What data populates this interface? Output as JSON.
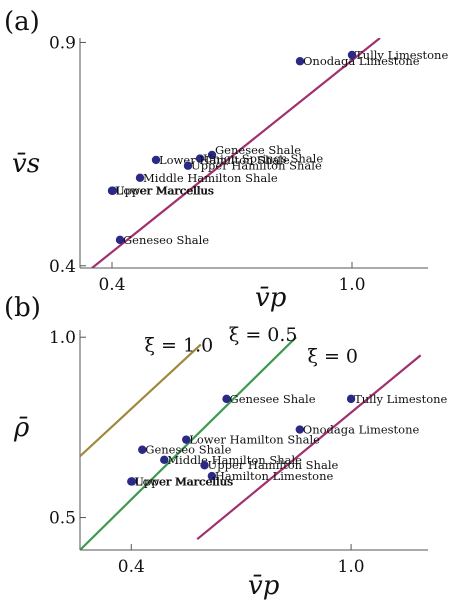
{
  "chart_data": [
    {
      "panel_label": "(a)",
      "type": "scatter",
      "xlabel": "v̄p",
      "ylabel": "v̄s",
      "x_ticks": [
        {
          "value": 0.4,
          "label": "0.4"
        },
        {
          "value": 1.0,
          "label": "1.0"
        }
      ],
      "y_ticks": [
        {
          "value": 0.4,
          "label": "0.4"
        },
        {
          "value": 0.9,
          "label": "0.9"
        }
      ],
      "xlim": [
        0.32,
        1.19
      ],
      "ylim": [
        0.395,
        0.91
      ],
      "grid": false,
      "marker_color": "#2a2a86",
      "line_color": "#a0306e",
      "points": [
        {
          "name": "Tully Limestone",
          "x": 1.0,
          "y": 0.872
        },
        {
          "name": "Onodaga Limestone",
          "x": 0.87,
          "y": 0.858
        },
        {
          "name": "Genesee Shale",
          "x": 0.65,
          "y": 0.648
        },
        {
          "name": "Union Springs Shale",
          "x": 0.62,
          "y": 0.64
        },
        {
          "name": "Lower Hamilton Shale",
          "x": 0.51,
          "y": 0.637
        },
        {
          "name": "Upper Hamilton Shale",
          "x": 0.59,
          "y": 0.624
        },
        {
          "name": "Middle Hamilton Shale",
          "x": 0.47,
          "y": 0.597
        },
        {
          "name": "Upper Marcellus",
          "x": 0.4,
          "y": 0.568
        },
        {
          "name": "Lower Marcellus",
          "x": 0.402,
          "y": 0.568
        },
        {
          "name": "Geneseo Shale",
          "x": 0.42,
          "y": 0.458
        }
      ],
      "line": {
        "x": [
          0.35,
          1.07
        ],
        "y": [
          0.395,
          0.91
        ]
      }
    },
    {
      "panel_label": "(b)",
      "type": "scatter",
      "xlabel": "v̄p",
      "ylabel": "ρ̄",
      "x_ticks": [
        {
          "value": 0.4,
          "label": "0.4"
        },
        {
          "value": 1.0,
          "label": "1.0"
        }
      ],
      "y_ticks": [
        {
          "value": 0.5,
          "label": "0.5"
        },
        {
          "value": 1.0,
          "label": "1.0"
        }
      ],
      "xlim": [
        0.26,
        1.21
      ],
      "ylim": [
        0.41,
        1.02
      ],
      "grid": false,
      "marker_color": "#2a2a86",
      "points": [
        {
          "name": "Genesee Shale",
          "x": 0.66,
          "y": 0.829
        },
        {
          "name": "Tully Limestone",
          "x": 1.0,
          "y": 0.829
        },
        {
          "name": "Onodaga Limestone",
          "x": 0.86,
          "y": 0.744
        },
        {
          "name": "Lower Hamilton Shale",
          "x": 0.55,
          "y": 0.716
        },
        {
          "name": "Geneseo Shale",
          "x": 0.43,
          "y": 0.688
        },
        {
          "name": "Middle Hamilton Shale",
          "x": 0.49,
          "y": 0.66
        },
        {
          "name": "Upper Hamilton Shale",
          "x": 0.6,
          "y": 0.645
        },
        {
          "name": "Hamilton Limestone",
          "x": 0.62,
          "y": 0.615
        },
        {
          "name": "Upper Marcellus",
          "x": 0.4,
          "y": 0.6
        },
        {
          "name": "Lower Marcellus",
          "x": 0.402,
          "y": 0.6
        }
      ],
      "lines": [
        {
          "label": "ξ = 1.0",
          "color": "#a0883c",
          "x": [
            0.26,
            0.59
          ],
          "y": [
            0.67,
            0.98
          ],
          "label_x": 0.53,
          "label_y": 0.96
        },
        {
          "label": "ξ = 0.5",
          "color": "#3c9a50",
          "x": [
            0.26,
            0.85
          ],
          "y": [
            0.41,
            1.0
          ],
          "label_x": 0.76,
          "label_y": 0.99
        },
        {
          "label": "ξ = 0",
          "color": "#a0306e",
          "x": [
            0.58,
            1.19
          ],
          "y": [
            0.44,
            0.95
          ],
          "label_x": 0.95,
          "label_y": 0.93
        }
      ]
    }
  ]
}
